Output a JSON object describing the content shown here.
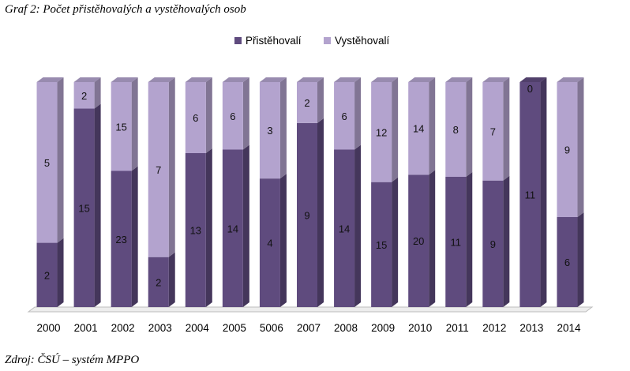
{
  "title": "Graf 2: Počet přistěhovalých a vystěhovalých osob",
  "source": "Zdroj: ČSÚ – systém MPPO",
  "chart_data": {
    "type": "bar",
    "stacking": "percent",
    "categories": [
      "2000",
      "2001",
      "2002",
      "2003",
      "2004",
      "2005",
      "5006",
      "2007",
      "2008",
      "2009",
      "2010",
      "2011",
      "2012",
      "2013",
      "2014"
    ],
    "series": [
      {
        "name": "Přistěhovalí",
        "color": "#5f4b7e",
        "values": [
          2,
          15,
          23,
          2,
          13,
          14,
          4,
          9,
          14,
          15,
          20,
          11,
          9,
          11,
          6
        ]
      },
      {
        "name": "Vystěhovalí",
        "color": "#b3a3ce",
        "values": [
          5,
          2,
          15,
          7,
          6,
          6,
          3,
          2,
          6,
          12,
          14,
          8,
          7,
          0,
          9
        ]
      }
    ],
    "legend_position": "top",
    "grid": false,
    "three_d": true
  }
}
